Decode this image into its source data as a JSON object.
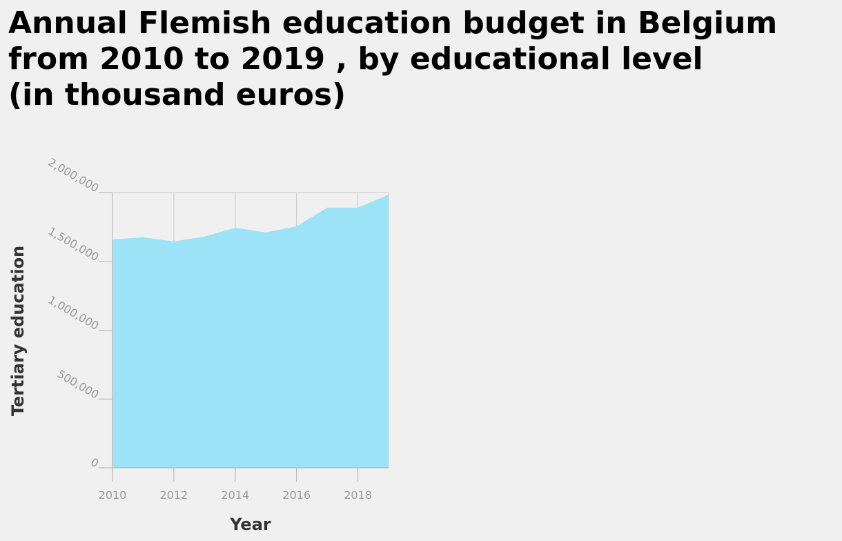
{
  "chart_data": {
    "type": "area",
    "title_lines": [
      "Annual Flemish education budget in Belgium",
      "from 2010 to 2019 , by educational level",
      "(in thousand euros)"
    ],
    "xlabel": "Year",
    "ylabel": "Tertiary education",
    "x": [
      2010,
      2011,
      2012,
      2013,
      2014,
      2015,
      2016,
      2017,
      2018,
      2019
    ],
    "series": [
      {
        "values": [
          1660000,
          1675000,
          1645000,
          1680000,
          1745000,
          1710000,
          1755000,
          1890000,
          1890000,
          1985000
        ]
      }
    ],
    "xlim": [
      2010,
      2019
    ],
    "ylim": [
      0,
      2000000
    ],
    "x_ticks": [
      2010,
      2012,
      2014,
      2016,
      2018
    ],
    "x_tick_labels": [
      "2010",
      "2012",
      "2014",
      "2016",
      "2018"
    ],
    "y_ticks": [
      0,
      500000,
      1000000,
      1500000,
      2000000
    ],
    "y_tick_labels": [
      "0",
      "500,000",
      "1,000,000",
      "1,500,000",
      "2,000,000"
    ],
    "grid": "vertical",
    "legend": "none",
    "fill_color": "#9de3f8",
    "grid_color": "#c8c8c8"
  }
}
